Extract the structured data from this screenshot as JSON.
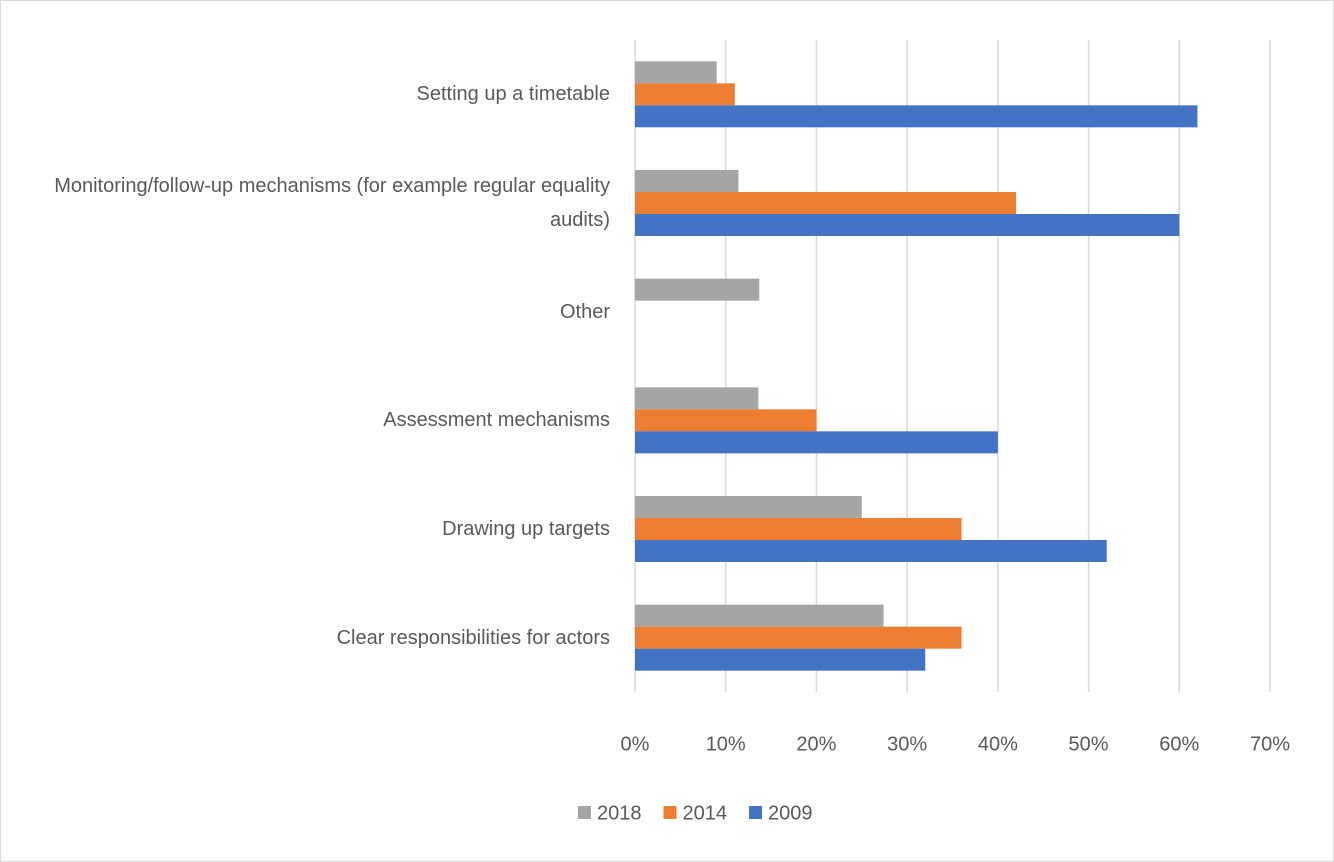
{
  "chart_data": {
    "type": "bar",
    "orientation": "horizontal",
    "categories": [
      "Setting up a timetable",
      "Monitoring/follow-up mechanisms (for example regular equality audits)",
      "Other",
      "Assessment mechanisms",
      "Drawing up targets",
      "Clear responsibilities for actors"
    ],
    "series": [
      {
        "name": "2018",
        "color": "#a5a5a5",
        "values": [
          9,
          11.4,
          13.7,
          13.6,
          25,
          27.4
        ]
      },
      {
        "name": "2014",
        "color": "#ed7d31",
        "values": [
          11,
          42,
          null,
          20,
          36,
          36
        ]
      },
      {
        "name": "2009",
        "color": "#4472c4",
        "values": [
          62,
          60,
          null,
          40,
          52,
          32
        ]
      }
    ],
    "xlim": [
      0,
      70
    ],
    "xticks": [
      {
        "value": 0,
        "label": "0%"
      },
      {
        "value": 10,
        "label": "10%"
      },
      {
        "value": 20,
        "label": "20%"
      },
      {
        "value": 30,
        "label": "30%"
      },
      {
        "value": 40,
        "label": "40%"
      },
      {
        "value": 50,
        "label": "50%"
      },
      {
        "value": 60,
        "label": "60%"
      },
      {
        "value": 70,
        "label": "70%"
      }
    ],
    "grid": true,
    "legend": "bottom"
  }
}
